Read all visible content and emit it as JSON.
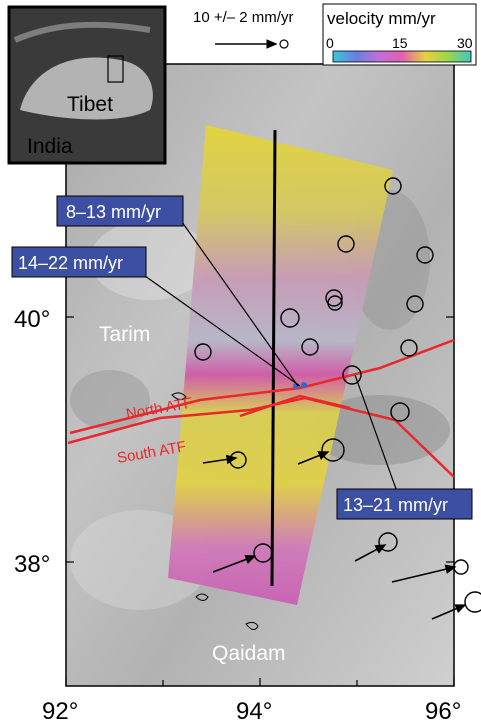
{
  "inset": {
    "label_tibet": "Tibet",
    "label_india": "India"
  },
  "scale": {
    "label": "10 +/– 2 mm/yr"
  },
  "colorbar": {
    "title": "velocity mm/yr",
    "ticks": [
      "0",
      "15",
      "30"
    ],
    "colors": [
      "#38c8d8",
      "#6a7ee0",
      "#c070d8",
      "#e060b0",
      "#e8d040",
      "#9cd64a",
      "#40c8c0"
    ]
  },
  "boxes": {
    "box1": "8–13 mm/yr",
    "box2": "14–22 mm/yr",
    "box3": "13–21 mm/yr",
    "color": "#3d4fa2"
  },
  "places": {
    "tarim": "Tarim",
    "qaidam": "Qaidam"
  },
  "faults": {
    "north": "North ATF",
    "south": "South ATF",
    "color": "#e8282a"
  },
  "axes": {
    "lat_labels": [
      "40°",
      "38°"
    ],
    "lon_labels": [
      "92°",
      "94°",
      "96°"
    ]
  }
}
